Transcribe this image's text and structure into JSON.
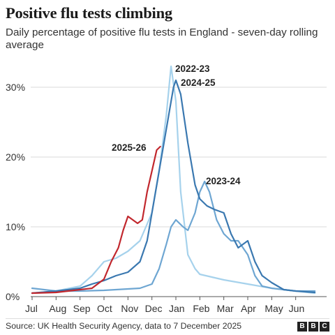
{
  "header": {
    "title": "Positive flu tests climbing",
    "subtitle": "Daily percentage of positive flu tests in England - seven-day rolling average"
  },
  "footer": {
    "source": "Source: UK Health Security Agency, data to 7 December 2025",
    "logo": [
      "B",
      "B",
      "C"
    ]
  },
  "chart_data": {
    "type": "line",
    "title": "Positive flu tests climbing",
    "subtitle": "Daily percentage of positive flu tests in England - seven-day rolling average",
    "x_ticks": [
      "Jul",
      "Aug",
      "Sep",
      "Oct",
      "Nov",
      "Dec",
      "Jan",
      "Feb",
      "Mar",
      "Apr",
      "May",
      "Jun"
    ],
    "y_ticks": [
      "0%",
      "10%",
      "20%",
      "30%"
    ],
    "y_tick_values": [
      0,
      10,
      20,
      30
    ],
    "ylim": [
      0,
      33
    ],
    "xlim": [
      0,
      12
    ],
    "grid": true,
    "series": [
      {
        "name": "2022-23",
        "color": "#a6d2ec",
        "x": [
          0,
          1,
          2,
          2.5,
          3,
          3.5,
          4,
          4.5,
          5,
          5.3,
          5.6,
          5.8,
          6.0,
          6.2,
          6.5,
          6.8,
          7.0,
          7.5,
          8,
          9,
          10,
          11,
          11.8
        ],
        "y": [
          0.5,
          0.8,
          1.5,
          3,
          5,
          5.5,
          6.5,
          8,
          12,
          18,
          26,
          33,
          28,
          15,
          6,
          4,
          3.2,
          2.8,
          2.4,
          1.8,
          1.2,
          0.8,
          0.5
        ]
      },
      {
        "name": "2024-25",
        "color": "#3a78b0",
        "x": [
          0,
          1,
          2,
          2.5,
          3,
          3.5,
          4,
          4.5,
          4.8,
          5.0,
          5.3,
          5.6,
          5.9,
          6.0,
          6.2,
          6.5,
          6.8,
          7.0,
          7.3,
          7.6,
          8,
          8.3,
          8.6,
          9,
          9.3,
          9.6,
          10,
          10.5,
          11,
          11.8
        ],
        "y": [
          0.5,
          0.8,
          1.2,
          1.8,
          2.3,
          3,
          3.5,
          5,
          8,
          12,
          18,
          24,
          30,
          31,
          29,
          22,
          16,
          14,
          13,
          12.5,
          12,
          9,
          7,
          8,
          5,
          3,
          2,
          1,
          0.8,
          0.6
        ]
      },
      {
        "name": "2023-24",
        "color": "#6ea6d2",
        "x": [
          0,
          1,
          2,
          3,
          4,
          4.5,
          5,
          5.3,
          5.6,
          5.8,
          6.0,
          6.3,
          6.5,
          6.8,
          7.0,
          7.2,
          7.4,
          7.7,
          8,
          8.3,
          8.6,
          9,
          9.3,
          9.6,
          10,
          10.5,
          11,
          11.8
        ],
        "y": [
          1.2,
          0.8,
          0.8,
          0.9,
          1.1,
          1.2,
          1.8,
          4,
          7.5,
          10,
          11,
          10,
          9.5,
          12,
          15,
          16.5,
          15,
          11,
          9,
          8,
          8,
          6,
          3,
          1.5,
          1.2,
          1,
          0.8,
          0.8
        ]
      },
      {
        "name": "2025-26",
        "color": "#c1272d",
        "x": [
          0,
          1,
          2,
          2.5,
          3,
          3.3,
          3.6,
          3.8,
          4.0,
          4.2,
          4.4,
          4.6,
          4.8,
          5.0,
          5.2,
          5.35
        ],
        "y": [
          0.5,
          0.6,
          1.0,
          1.2,
          2.5,
          5,
          7,
          9.5,
          11.5,
          11,
          10.5,
          11,
          15,
          18,
          21,
          21.5
        ]
      }
    ],
    "annotations": [
      {
        "text": "2022-23",
        "series": "2022-23"
      },
      {
        "text": "2024-25",
        "series": "2024-25"
      },
      {
        "text": "2023-24",
        "series": "2023-24"
      },
      {
        "text": "2025-26",
        "series": "2025-26"
      }
    ]
  }
}
